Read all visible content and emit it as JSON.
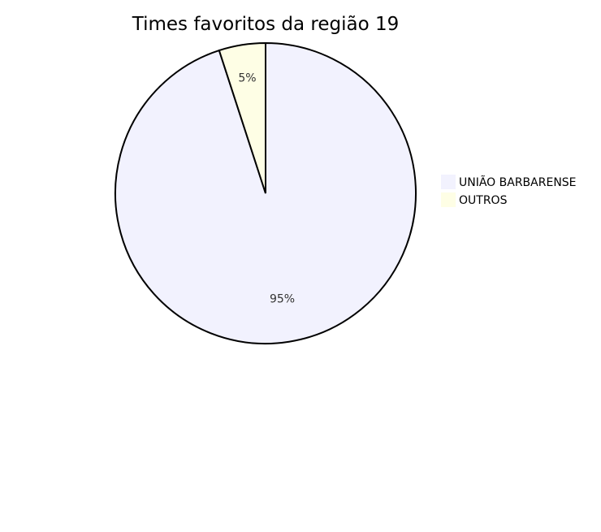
{
  "chart_data": {
    "type": "pie",
    "title": "Times favoritos da região 19",
    "categories": [
      "UNIÃO BARBARENSE",
      "OUTROS"
    ],
    "values": [
      95,
      5
    ],
    "labels": [
      "95%",
      "5%"
    ],
    "colors": [
      "#f2f2fe",
      "#fefee5"
    ],
    "stroke_color": "#000000",
    "start_angle": "12-o'clock",
    "direction": "clockwise",
    "legend_position": "right"
  }
}
